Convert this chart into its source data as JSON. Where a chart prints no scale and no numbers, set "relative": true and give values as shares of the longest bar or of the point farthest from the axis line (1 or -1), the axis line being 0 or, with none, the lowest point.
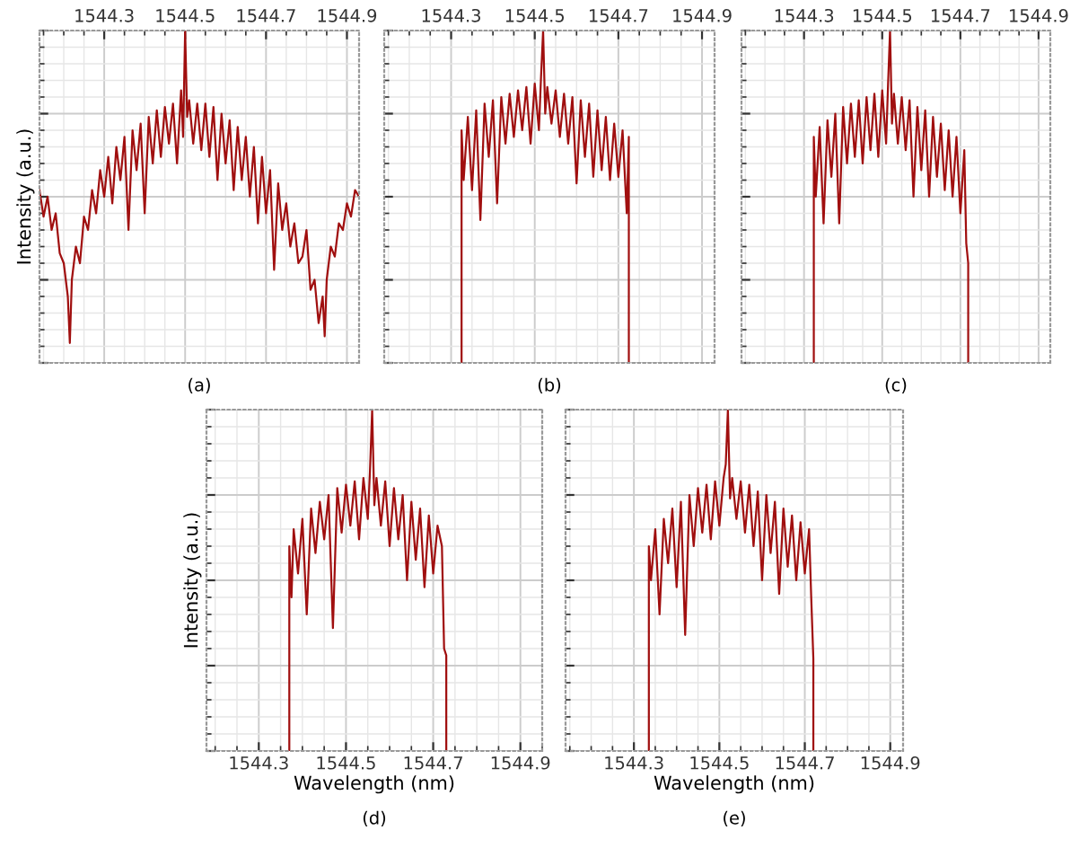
{
  "chart_data": [
    {
      "type": "line",
      "relative": true,
      "ylabel": "Intensity (a.u.)",
      "annotations": [
        "(a)"
      ],
      "color": "#a00f0f",
      "grid": true,
      "tick_labels": "x",
      "xlim": [
        1544.14,
        1544.93
      ],
      "xticks": [
        1544.3,
        1544.5,
        1544.7,
        1544.9
      ],
      "x": [
        1544.14,
        1544.15,
        1544.16,
        1544.17,
        1544.18,
        1544.19,
        1544.2,
        1544.21,
        1544.215,
        1544.22,
        1544.23,
        1544.24,
        1544.25,
        1544.26,
        1544.27,
        1544.28,
        1544.29,
        1544.3,
        1544.31,
        1544.32,
        1544.33,
        1544.34,
        1544.35,
        1544.36,
        1544.37,
        1544.38,
        1544.39,
        1544.4,
        1544.41,
        1544.42,
        1544.43,
        1544.44,
        1544.45,
        1544.46,
        1544.47,
        1544.48,
        1544.49,
        1544.495,
        1544.5,
        1544.505,
        1544.51,
        1544.52,
        1544.53,
        1544.54,
        1544.55,
        1544.56,
        1544.57,
        1544.58,
        1544.59,
        1544.6,
        1544.61,
        1544.62,
        1544.63,
        1544.64,
        1544.65,
        1544.66,
        1544.67,
        1544.68,
        1544.69,
        1544.7,
        1544.71,
        1544.72,
        1544.73,
        1544.74,
        1544.75,
        1544.76,
        1544.77,
        1544.78,
        1544.79,
        1544.8,
        1544.81,
        1544.82,
        1544.83,
        1544.84,
        1544.845,
        1544.85,
        1544.86,
        1544.87,
        1544.88,
        1544.89,
        1544.9,
        1544.91,
        1544.92,
        1544.93
      ],
      "values": [
        0.52,
        0.44,
        0.5,
        0.4,
        0.45,
        0.33,
        0.3,
        0.2,
        0.06,
        0.25,
        0.35,
        0.3,
        0.44,
        0.4,
        0.52,
        0.45,
        0.58,
        0.5,
        0.62,
        0.48,
        0.65,
        0.55,
        0.68,
        0.4,
        0.7,
        0.58,
        0.72,
        0.45,
        0.74,
        0.6,
        0.76,
        0.62,
        0.77,
        0.66,
        0.78,
        0.6,
        0.82,
        0.68,
        1.0,
        0.74,
        0.79,
        0.66,
        0.78,
        0.64,
        0.78,
        0.62,
        0.77,
        0.55,
        0.75,
        0.6,
        0.73,
        0.52,
        0.71,
        0.55,
        0.68,
        0.5,
        0.65,
        0.42,
        0.62,
        0.45,
        0.58,
        0.28,
        0.54,
        0.4,
        0.48,
        0.35,
        0.42,
        0.3,
        0.32,
        0.4,
        0.22,
        0.25,
        0.12,
        0.2,
        0.08,
        0.25,
        0.35,
        0.32,
        0.42,
        0.4,
        0.48,
        0.44,
        0.52,
        0.5
      ]
    },
    {
      "type": "line",
      "relative": true,
      "annotations": [
        "(b)"
      ],
      "color": "#a00f0f",
      "grid": true,
      "tick_labels": "x",
      "xlim": [
        1544.14,
        1544.93
      ],
      "xticks": [
        1544.3,
        1544.5,
        1544.7,
        1544.9
      ],
      "x": [
        1544.325,
        1544.325,
        1544.33,
        1544.34,
        1544.35,
        1544.36,
        1544.37,
        1544.38,
        1544.39,
        1544.4,
        1544.41,
        1544.42,
        1544.43,
        1544.44,
        1544.45,
        1544.46,
        1544.47,
        1544.48,
        1544.49,
        1544.5,
        1544.51,
        1544.515,
        1544.52,
        1544.525,
        1544.53,
        1544.54,
        1544.55,
        1544.56,
        1544.57,
        1544.58,
        1544.59,
        1544.6,
        1544.61,
        1544.62,
        1544.63,
        1544.64,
        1544.65,
        1544.66,
        1544.67,
        1544.68,
        1544.69,
        1544.7,
        1544.71,
        1544.72,
        1544.725,
        1544.725
      ],
      "values": [
        0,
        0.7,
        0.55,
        0.74,
        0.52,
        0.76,
        0.43,
        0.78,
        0.62,
        0.79,
        0.48,
        0.8,
        0.66,
        0.81,
        0.68,
        0.82,
        0.7,
        0.83,
        0.66,
        0.84,
        0.7,
        0.86,
        1.0,
        0.75,
        0.83,
        0.72,
        0.82,
        0.68,
        0.81,
        0.66,
        0.8,
        0.54,
        0.79,
        0.62,
        0.78,
        0.56,
        0.76,
        0.58,
        0.74,
        0.55,
        0.72,
        0.56,
        0.7,
        0.45,
        0.68,
        0
      ]
    },
    {
      "type": "line",
      "relative": true,
      "annotations": [
        "(c)"
      ],
      "color": "#a00f0f",
      "grid": true,
      "tick_labels": "x",
      "xlim": [
        1544.14,
        1544.93
      ],
      "xticks": [
        1544.3,
        1544.5,
        1544.7,
        1544.9
      ],
      "x": [
        1544.325,
        1544.325,
        1544.33,
        1544.34,
        1544.35,
        1544.36,
        1544.37,
        1544.38,
        1544.39,
        1544.4,
        1544.41,
        1544.42,
        1544.43,
        1544.44,
        1544.45,
        1544.46,
        1544.47,
        1544.48,
        1544.49,
        1544.5,
        1544.51,
        1544.515,
        1544.52,
        1544.525,
        1544.53,
        1544.54,
        1544.55,
        1544.56,
        1544.57,
        1544.58,
        1544.59,
        1544.6,
        1544.61,
        1544.62,
        1544.63,
        1544.64,
        1544.65,
        1544.66,
        1544.67,
        1544.68,
        1544.69,
        1544.7,
        1544.71,
        1544.715,
        1544.72,
        1544.72
      ],
      "values": [
        0,
        0.68,
        0.5,
        0.71,
        0.42,
        0.73,
        0.56,
        0.75,
        0.42,
        0.77,
        0.6,
        0.78,
        0.62,
        0.79,
        0.6,
        0.8,
        0.64,
        0.81,
        0.62,
        0.82,
        0.66,
        0.84,
        1.0,
        0.72,
        0.81,
        0.66,
        0.8,
        0.64,
        0.79,
        0.5,
        0.77,
        0.58,
        0.76,
        0.5,
        0.74,
        0.56,
        0.72,
        0.52,
        0.7,
        0.5,
        0.68,
        0.45,
        0.64,
        0.36,
        0.3,
        0
      ]
    },
    {
      "type": "line",
      "relative": true,
      "xlabel": "Wavelength (nm)",
      "ylabel": "Intensity (a.u.)",
      "annotations": [
        "(d)"
      ],
      "color": "#a00f0f",
      "grid": true,
      "tick_labels": "x",
      "xlim": [
        1544.18,
        1544.95
      ],
      "xticks": [
        1544.3,
        1544.5,
        1544.7,
        1544.9
      ],
      "x": [
        1544.37,
        1544.37,
        1544.375,
        1544.38,
        1544.39,
        1544.4,
        1544.41,
        1544.42,
        1544.43,
        1544.44,
        1544.45,
        1544.46,
        1544.47,
        1544.48,
        1544.49,
        1544.5,
        1544.51,
        1544.52,
        1544.53,
        1544.54,
        1544.55,
        1544.555,
        1544.56,
        1544.565,
        1544.57,
        1544.58,
        1544.59,
        1544.6,
        1544.61,
        1544.62,
        1544.63,
        1544.64,
        1544.65,
        1544.66,
        1544.67,
        1544.68,
        1544.69,
        1544.7,
        1544.71,
        1544.72,
        1544.725,
        1544.73,
        1544.73
      ],
      "values": [
        0,
        0.6,
        0.45,
        0.65,
        0.52,
        0.68,
        0.4,
        0.71,
        0.58,
        0.73,
        0.62,
        0.75,
        0.36,
        0.77,
        0.64,
        0.78,
        0.66,
        0.79,
        0.62,
        0.8,
        0.68,
        0.82,
        1.0,
        0.72,
        0.8,
        0.66,
        0.79,
        0.6,
        0.77,
        0.62,
        0.75,
        0.5,
        0.73,
        0.56,
        0.71,
        0.48,
        0.69,
        0.52,
        0.66,
        0.6,
        0.3,
        0.28,
        0
      ]
    },
    {
      "type": "line",
      "relative": true,
      "xlabel": "Wavelength (nm)",
      "annotations": [
        "(e)"
      ],
      "color": "#a00f0f",
      "grid": true,
      "tick_labels": "x",
      "xlim": [
        1544.14,
        1544.93
      ],
      "xticks": [
        1544.3,
        1544.5,
        1544.7,
        1544.9
      ],
      "x": [
        1544.335,
        1544.335,
        1544.34,
        1544.35,
        1544.36,
        1544.37,
        1544.38,
        1544.39,
        1544.4,
        1544.41,
        1544.42,
        1544.43,
        1544.44,
        1544.45,
        1544.46,
        1544.47,
        1544.48,
        1544.49,
        1544.5,
        1544.51,
        1544.515,
        1544.52,
        1544.525,
        1544.53,
        1544.54,
        1544.55,
        1544.56,
        1544.57,
        1544.58,
        1544.59,
        1544.6,
        1544.61,
        1544.62,
        1544.63,
        1544.64,
        1544.65,
        1544.66,
        1544.67,
        1544.68,
        1544.69,
        1544.7,
        1544.71,
        1544.715,
        1544.72,
        1544.72
      ],
      "values": [
        0,
        0.6,
        0.5,
        0.65,
        0.4,
        0.68,
        0.55,
        0.71,
        0.48,
        0.73,
        0.34,
        0.75,
        0.6,
        0.77,
        0.64,
        0.78,
        0.62,
        0.79,
        0.66,
        0.8,
        0.84,
        1.0,
        0.74,
        0.8,
        0.68,
        0.79,
        0.64,
        0.78,
        0.6,
        0.76,
        0.5,
        0.75,
        0.58,
        0.73,
        0.46,
        0.71,
        0.54,
        0.69,
        0.5,
        0.67,
        0.52,
        0.65,
        0.45,
        0.27,
        0
      ]
    }
  ]
}
